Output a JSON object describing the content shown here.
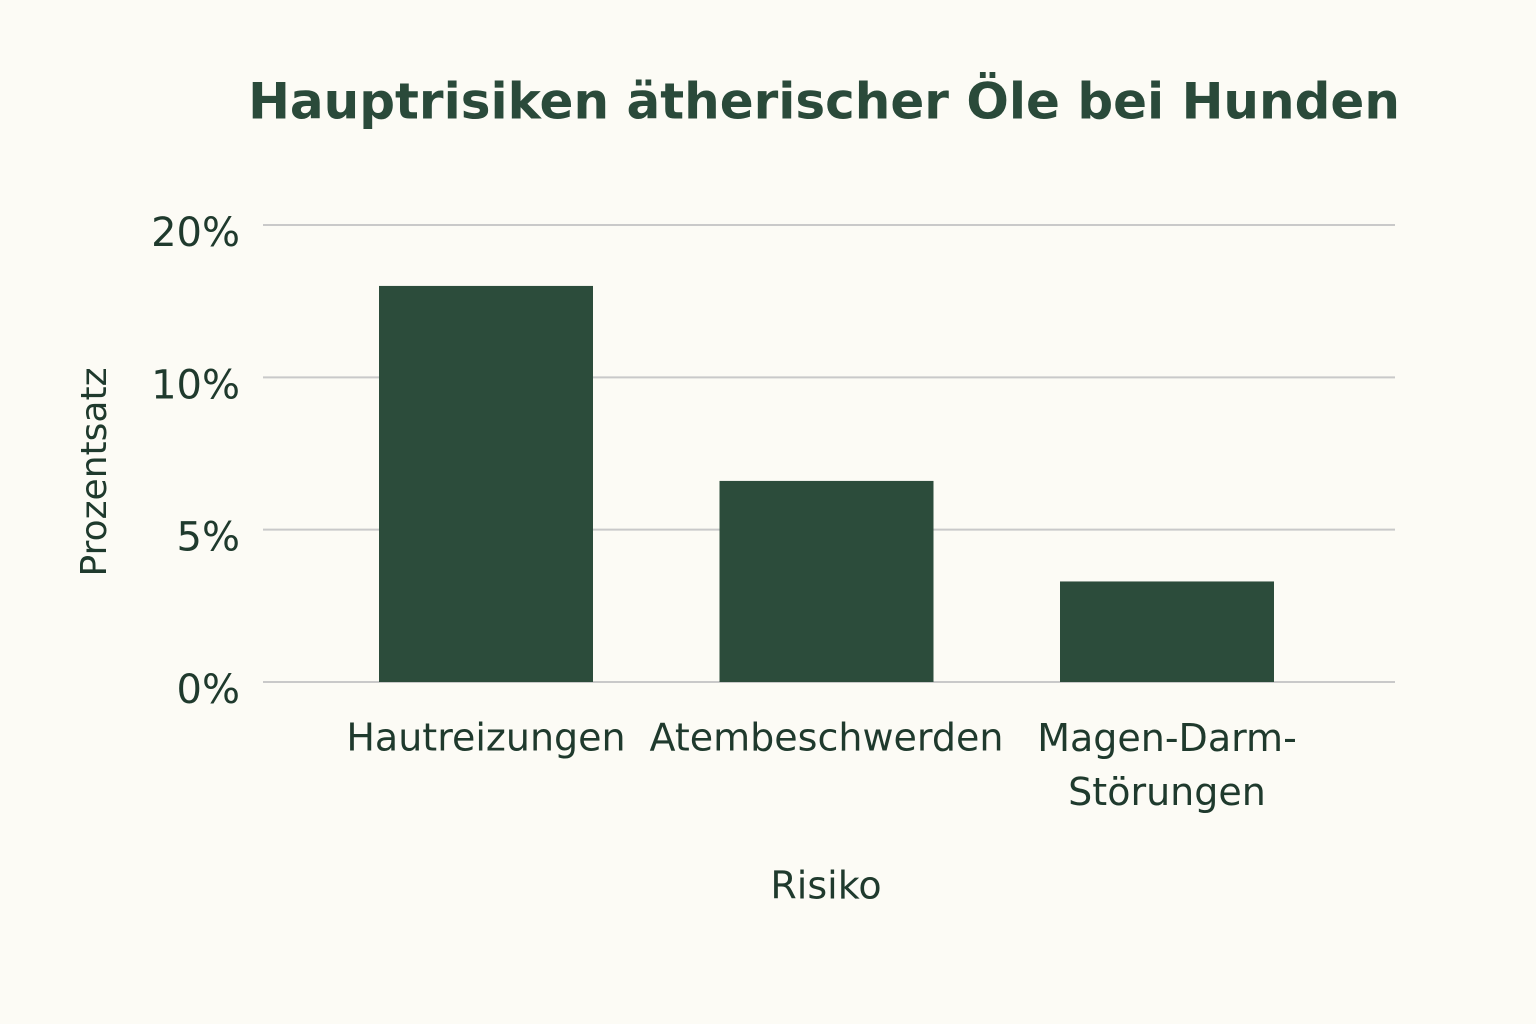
{
  "chart_data": {
    "type": "bar",
    "title": "Hauptrisiken ätherischer Öle bei Hunden",
    "x_label": "Risiko",
    "y_label": "Prozentsatz",
    "categories": [
      "Hautreizungen",
      "Atembeschwerden",
      "Magen-Darm-Störungen"
    ],
    "values": [
      16,
      6.6,
      3.3
    ],
    "color": "#2c4c3b",
    "ylim": [
      0,
      20
    ],
    "yticks": [
      {
        "value": 0,
        "label": "0%"
      },
      {
        "value": 5,
        "label": "5%"
      },
      {
        "value": 10,
        "label": "10%"
      },
      {
        "value": 20,
        "label": "20%"
      }
    ],
    "grid": true
  }
}
